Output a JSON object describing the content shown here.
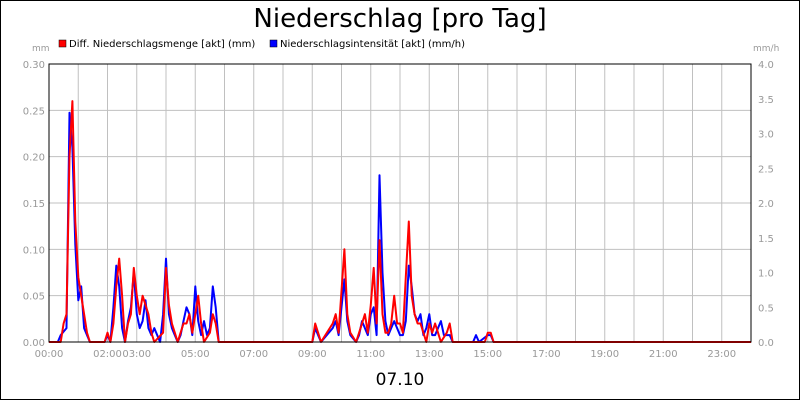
{
  "chart_data": {
    "type": "line",
    "title": "Niederschlag [pro Tag]",
    "date_label": "07.10",
    "y_left": {
      "unit": "mm",
      "ylim": [
        0,
        0.3
      ],
      "ticks": [
        "0.00",
        "0.05",
        "0.10",
        "0.15",
        "0.20",
        "0.25",
        "0.30"
      ],
      "tick_values": [
        0,
        0.05,
        0.1,
        0.15,
        0.2,
        0.25,
        0.3
      ]
    },
    "y_right": {
      "unit": "mm/h",
      "ylim": [
        0,
        4.0
      ],
      "ticks": [
        "0.0",
        "0.5",
        "1.0",
        "1.5",
        "2.0",
        "2.5",
        "3.0",
        "3.5",
        "4.0"
      ],
      "tick_values": [
        0,
        0.5,
        1.0,
        1.5,
        2.0,
        2.5,
        3.0,
        3.5,
        4.0
      ]
    },
    "x_ticks": [
      {
        "h": 0,
        "label": "00:00"
      },
      {
        "h": 2,
        "label": "02:00"
      },
      {
        "h": 3,
        "label": "03:00"
      },
      {
        "h": 5,
        "label": "05:00"
      },
      {
        "h": 7,
        "label": "07:00"
      },
      {
        "h": 9,
        "label": "09:00"
      },
      {
        "h": 11,
        "label": "11:00"
      },
      {
        "h": 13,
        "label": "13:00"
      },
      {
        "h": 15,
        "label": "15:00"
      },
      {
        "h": 17,
        "label": "17:00"
      },
      {
        "h": 19,
        "label": "19:00"
      },
      {
        "h": 21,
        "label": "21:00"
      },
      {
        "h": 23,
        "label": "23:00"
      }
    ],
    "x_range_hours": [
      0,
      24
    ],
    "grid": true,
    "legend": "top-left",
    "series": [
      {
        "name": "Diff. Niederschlagsmenge [akt] (mm)",
        "color": "#ff0000",
        "axis": "left",
        "points": [
          [
            0,
            0
          ],
          [
            0.4,
            0
          ],
          [
            0.5,
            0.02
          ],
          [
            0.6,
            0.03
          ],
          [
            0.7,
            0.2
          ],
          [
            0.8,
            0.26
          ],
          [
            0.9,
            0.13
          ],
          [
            1.0,
            0.07
          ],
          [
            1.1,
            0.05
          ],
          [
            1.2,
            0.03
          ],
          [
            1.3,
            0.01
          ],
          [
            1.4,
            0
          ],
          [
            1.9,
            0
          ],
          [
            2.0,
            0.01
          ],
          [
            2.1,
            0
          ],
          [
            2.2,
            0.02
          ],
          [
            2.3,
            0.06
          ],
          [
            2.4,
            0.09
          ],
          [
            2.5,
            0.05
          ],
          [
            2.6,
            0
          ],
          [
            2.7,
            0.02
          ],
          [
            2.8,
            0.03
          ],
          [
            2.9,
            0.08
          ],
          [
            3.0,
            0.05
          ],
          [
            3.1,
            0.03
          ],
          [
            3.2,
            0.05
          ],
          [
            3.3,
            0.04
          ],
          [
            3.4,
            0.03
          ],
          [
            3.5,
            0.01
          ],
          [
            3.6,
            0
          ],
          [
            3.9,
            0.01
          ],
          [
            4.0,
            0.08
          ],
          [
            4.1,
            0.04
          ],
          [
            4.2,
            0.02
          ],
          [
            4.3,
            0.01
          ],
          [
            4.4,
            0
          ],
          [
            4.5,
            0.01
          ],
          [
            4.6,
            0.02
          ],
          [
            4.7,
            0.02
          ],
          [
            4.8,
            0.03
          ],
          [
            4.9,
            0.01
          ],
          [
            5.0,
            0.03
          ],
          [
            5.1,
            0.05
          ],
          [
            5.2,
            0.02
          ],
          [
            5.3,
            0
          ],
          [
            5.5,
            0.01
          ],
          [
            5.6,
            0.03
          ],
          [
            5.7,
            0.02
          ],
          [
            5.8,
            0
          ],
          [
            9.0,
            0
          ],
          [
            9.1,
            0.02
          ],
          [
            9.2,
            0.01
          ],
          [
            9.3,
            0
          ],
          [
            9.7,
            0.02
          ],
          [
            9.8,
            0.03
          ],
          [
            9.9,
            0.01
          ],
          [
            10.1,
            0.1
          ],
          [
            10.2,
            0.03
          ],
          [
            10.3,
            0.01
          ],
          [
            10.5,
            0
          ],
          [
            10.6,
            0.01
          ],
          [
            10.7,
            0.02
          ],
          [
            10.8,
            0.03
          ],
          [
            10.9,
            0.01
          ],
          [
            11.0,
            0.04
          ],
          [
            11.1,
            0.08
          ],
          [
            11.2,
            0.02
          ],
          [
            11.3,
            0.11
          ],
          [
            11.4,
            0.03
          ],
          [
            11.5,
            0.01
          ],
          [
            11.6,
            0.01
          ],
          [
            11.7,
            0.02
          ],
          [
            11.8,
            0.05
          ],
          [
            11.9,
            0.02
          ],
          [
            12.0,
            0.02
          ],
          [
            12.1,
            0.01
          ],
          [
            12.2,
            0.07
          ],
          [
            12.3,
            0.13
          ],
          [
            12.4,
            0.05
          ],
          [
            12.5,
            0.03
          ],
          [
            12.6,
            0.02
          ],
          [
            12.7,
            0.02
          ],
          [
            12.8,
            0.01
          ],
          [
            12.9,
            0
          ],
          [
            13.0,
            0.02
          ],
          [
            13.1,
            0.01
          ],
          [
            13.2,
            0.02
          ],
          [
            13.3,
            0.01
          ],
          [
            13.4,
            0
          ],
          [
            13.6,
            0.01
          ],
          [
            13.7,
            0.02
          ],
          [
            13.8,
            0
          ],
          [
            14.9,
            0
          ],
          [
            15.0,
            0.01
          ],
          [
            15.1,
            0.01
          ],
          [
            15.2,
            0
          ],
          [
            24,
            0
          ]
        ]
      },
      {
        "name": "Niederschlagsintensität [akt] (mm/h)",
        "color": "#0000ff",
        "axis": "right",
        "points": [
          [
            0,
            0
          ],
          [
            0.3,
            0
          ],
          [
            0.4,
            0.1
          ],
          [
            0.6,
            0.2
          ],
          [
            0.7,
            3.3
          ],
          [
            0.8,
            2.8
          ],
          [
            0.9,
            1.4
          ],
          [
            1.0,
            0.6
          ],
          [
            1.1,
            0.8
          ],
          [
            1.2,
            0.2
          ],
          [
            1.3,
            0.1
          ],
          [
            1.4,
            0
          ],
          [
            1.9,
            0
          ],
          [
            2.0,
            0.1
          ],
          [
            2.1,
            0
          ],
          [
            2.2,
            0.5
          ],
          [
            2.3,
            1.1
          ],
          [
            2.4,
            0.8
          ],
          [
            2.5,
            0.2
          ],
          [
            2.6,
            0
          ],
          [
            2.7,
            0.3
          ],
          [
            2.8,
            0.5
          ],
          [
            2.9,
            1.0
          ],
          [
            3.0,
            0.4
          ],
          [
            3.1,
            0.2
          ],
          [
            3.2,
            0.3
          ],
          [
            3.3,
            0.6
          ],
          [
            3.4,
            0.2
          ],
          [
            3.5,
            0.1
          ],
          [
            3.6,
            0.2
          ],
          [
            3.7,
            0.1
          ],
          [
            3.8,
            0
          ],
          [
            3.9,
            0.4
          ],
          [
            4.0,
            1.2
          ],
          [
            4.1,
            0.4
          ],
          [
            4.2,
            0.2
          ],
          [
            4.3,
            0.1
          ],
          [
            4.4,
            0
          ],
          [
            4.5,
            0.1
          ],
          [
            4.6,
            0.3
          ],
          [
            4.7,
            0.5
          ],
          [
            4.8,
            0.4
          ],
          [
            4.9,
            0.1
          ],
          [
            5.0,
            0.8
          ],
          [
            5.1,
            0.3
          ],
          [
            5.2,
            0.1
          ],
          [
            5.3,
            0.3
          ],
          [
            5.4,
            0.1
          ],
          [
            5.5,
            0.2
          ],
          [
            5.6,
            0.8
          ],
          [
            5.7,
            0.5
          ],
          [
            5.8,
            0
          ],
          [
            9.0,
            0
          ],
          [
            9.1,
            0.2
          ],
          [
            9.2,
            0.1
          ],
          [
            9.3,
            0
          ],
          [
            9.7,
            0.2
          ],
          [
            9.8,
            0.3
          ],
          [
            9.9,
            0.1
          ],
          [
            10.0,
            0.5
          ],
          [
            10.1,
            0.9
          ],
          [
            10.2,
            0.3
          ],
          [
            10.3,
            0.1
          ],
          [
            10.5,
            0
          ],
          [
            10.6,
            0.1
          ],
          [
            10.7,
            0.3
          ],
          [
            10.8,
            0.2
          ],
          [
            10.9,
            0.1
          ],
          [
            11.0,
            0.4
          ],
          [
            11.1,
            0.5
          ],
          [
            11.2,
            0.1
          ],
          [
            11.3,
            2.4
          ],
          [
            11.4,
            1.0
          ],
          [
            11.5,
            0.3
          ],
          [
            11.6,
            0.1
          ],
          [
            11.7,
            0.2
          ],
          [
            11.8,
            0.3
          ],
          [
            11.9,
            0.2
          ],
          [
            12.0,
            0.1
          ],
          [
            12.1,
            0.1
          ],
          [
            12.2,
            0.3
          ],
          [
            12.3,
            1.1
          ],
          [
            12.4,
            0.8
          ],
          [
            12.5,
            0.4
          ],
          [
            12.6,
            0.3
          ],
          [
            12.7,
            0.4
          ],
          [
            12.8,
            0.1
          ],
          [
            12.9,
            0.2
          ],
          [
            13.0,
            0.4
          ],
          [
            13.1,
            0.1
          ],
          [
            13.2,
            0.1
          ],
          [
            13.3,
            0.2
          ],
          [
            13.4,
            0.3
          ],
          [
            13.5,
            0.1
          ],
          [
            13.6,
            0.1
          ],
          [
            13.7,
            0.1
          ],
          [
            13.8,
            0
          ],
          [
            14.5,
            0
          ],
          [
            14.6,
            0.1
          ],
          [
            14.7,
            0
          ],
          [
            15.0,
            0.1
          ],
          [
            15.1,
            0.1
          ],
          [
            15.2,
            0
          ],
          [
            24,
            0
          ]
        ]
      }
    ]
  }
}
